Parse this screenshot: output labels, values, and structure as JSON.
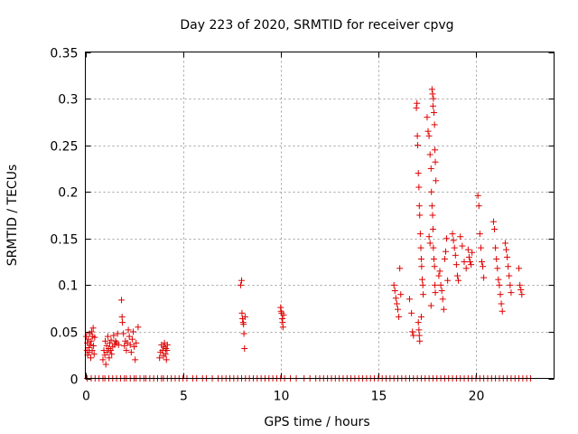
{
  "chart_data": {
    "type": "scatter",
    "title": "Day 223 of 2020, SRMTID for receiver cpvg",
    "xlabel": "GPS time / hours",
    "ylabel": "SRMTID / TECUs",
    "xlim": [
      0,
      24
    ],
    "ylim": [
      0,
      0.35
    ],
    "xticks": [
      0,
      5,
      10,
      15,
      20
    ],
    "xtick_labels": [
      "0",
      "5",
      "10",
      "15",
      "20"
    ],
    "yticks": [
      0,
      0.05,
      0.1,
      0.15,
      0.2,
      0.25,
      0.3,
      0.35
    ],
    "ytick_labels": [
      "0",
      "0.05",
      "0.1",
      "0.15",
      "0.2",
      "0.25",
      "0.3",
      "0.35"
    ],
    "grid": true,
    "marker": "+",
    "color": "#dd0000",
    "series": [
      {
        "name": "SRMTID",
        "points": [
          [
            0.05,
            0.045
          ],
          [
            0.08,
            0.03
          ],
          [
            0.1,
            0.038
          ],
          [
            0.12,
            0.025
          ],
          [
            0.15,
            0.042
          ],
          [
            0.18,
            0.033
          ],
          [
            0.2,
            0.028
          ],
          [
            0.22,
            0.048
          ],
          [
            0.25,
            0.036
          ],
          [
            0.28,
            0.022
          ],
          [
            0.3,
            0.04
          ],
          [
            0.32,
            0.05
          ],
          [
            0.35,
            0.03
          ],
          [
            0.38,
            0.045
          ],
          [
            0.4,
            0.054
          ],
          [
            0.42,
            0.035
          ],
          [
            0.45,
            0.026
          ],
          [
            0.48,
            0.044
          ],
          [
            0.9,
            0.02
          ],
          [
            0.95,
            0.03
          ],
          [
            1.0,
            0.025
          ],
          [
            1.02,
            0.04
          ],
          [
            1.05,
            0.015
          ],
          [
            1.1,
            0.035
          ],
          [
            1.12,
            0.028
          ],
          [
            1.15,
            0.045
          ],
          [
            1.2,
            0.032
          ],
          [
            1.22,
            0.022
          ],
          [
            1.25,
            0.038
          ],
          [
            1.3,
            0.03
          ],
          [
            1.32,
            0.041
          ],
          [
            1.35,
            0.026
          ],
          [
            1.4,
            0.034
          ],
          [
            1.45,
            0.046
          ],
          [
            1.5,
            0.036
          ],
          [
            1.55,
            0.04
          ],
          [
            1.6,
            0.038
          ],
          [
            1.65,
            0.048
          ],
          [
            1.7,
            0.036
          ],
          [
            1.85,
            0.084
          ],
          [
            1.88,
            0.066
          ],
          [
            1.9,
            0.06
          ],
          [
            1.95,
            0.048
          ],
          [
            2.0,
            0.035
          ],
          [
            2.05,
            0.04
          ],
          [
            2.1,
            0.03
          ],
          [
            2.15,
            0.038
          ],
          [
            2.2,
            0.052
          ],
          [
            2.25,
            0.045
          ],
          [
            2.3,
            0.036
          ],
          [
            2.35,
            0.028
          ],
          [
            2.4,
            0.042
          ],
          [
            2.45,
            0.05
          ],
          [
            2.5,
            0.034
          ],
          [
            2.55,
            0.02
          ],
          [
            2.6,
            0.038
          ],
          [
            2.7,
            0.055
          ],
          [
            3.8,
            0.022
          ],
          [
            3.85,
            0.028
          ],
          [
            3.9,
            0.036
          ],
          [
            3.95,
            0.03
          ],
          [
            4.0,
            0.024
          ],
          [
            4.02,
            0.034
          ],
          [
            4.05,
            0.038
          ],
          [
            4.1,
            0.026
          ],
          [
            4.12,
            0.032
          ],
          [
            4.15,
            0.02
          ],
          [
            4.18,
            0.03
          ],
          [
            4.2,
            0.036
          ],
          [
            7.95,
            0.1
          ],
          [
            8.0,
            0.105
          ],
          [
            8.02,
            0.07
          ],
          [
            8.05,
            0.064
          ],
          [
            8.08,
            0.06
          ],
          [
            8.1,
            0.058
          ],
          [
            8.12,
            0.048
          ],
          [
            8.15,
            0.032
          ],
          [
            8.18,
            0.066
          ],
          [
            10.0,
            0.076
          ],
          [
            10.02,
            0.072
          ],
          [
            10.05,
            0.07
          ],
          [
            10.08,
            0.064
          ],
          [
            10.1,
            0.06
          ],
          [
            10.12,
            0.055
          ],
          [
            10.15,
            0.068
          ],
          [
            15.8,
            0.1
          ],
          [
            15.85,
            0.094
          ],
          [
            15.9,
            0.086
          ],
          [
            15.95,
            0.08
          ],
          [
            16.0,
            0.074
          ],
          [
            16.05,
            0.066
          ],
          [
            16.1,
            0.118
          ],
          [
            16.15,
            0.09
          ],
          [
            16.6,
            0.085
          ],
          [
            16.7,
            0.07
          ],
          [
            16.75,
            0.05
          ],
          [
            16.8,
            0.046
          ],
          [
            16.95,
            0.29
          ],
          [
            16.98,
            0.295
          ],
          [
            17.0,
            0.26
          ],
          [
            17.02,
            0.25
          ],
          [
            17.05,
            0.22
          ],
          [
            17.08,
            0.205
          ],
          [
            17.1,
            0.185
          ],
          [
            17.12,
            0.175
          ],
          [
            17.15,
            0.155
          ],
          [
            17.18,
            0.14
          ],
          [
            17.2,
            0.128
          ],
          [
            17.22,
            0.12
          ],
          [
            17.25,
            0.106
          ],
          [
            17.28,
            0.1
          ],
          [
            17.3,
            0.09
          ],
          [
            17.05,
            0.06
          ],
          [
            17.08,
            0.052
          ],
          [
            17.1,
            0.046
          ],
          [
            17.12,
            0.04
          ],
          [
            17.2,
            0.066
          ],
          [
            17.5,
            0.28
          ],
          [
            17.55,
            0.265
          ],
          [
            17.6,
            0.26
          ],
          [
            17.65,
            0.24
          ],
          [
            17.7,
            0.225
          ],
          [
            17.72,
            0.2
          ],
          [
            17.75,
            0.185
          ],
          [
            17.78,
            0.175
          ],
          [
            17.8,
            0.16
          ],
          [
            17.82,
            0.14
          ],
          [
            17.85,
            0.128
          ],
          [
            17.88,
            0.12
          ],
          [
            17.9,
            0.1
          ],
          [
            17.92,
            0.092
          ],
          [
            17.75,
            0.31
          ],
          [
            17.78,
            0.305
          ],
          [
            17.8,
            0.292
          ],
          [
            17.82,
            0.3
          ],
          [
            17.85,
            0.285
          ],
          [
            17.88,
            0.272
          ],
          [
            17.9,
            0.245
          ],
          [
            17.92,
            0.232
          ],
          [
            17.95,
            0.212
          ],
          [
            17.6,
            0.152
          ],
          [
            17.65,
            0.145
          ],
          [
            17.7,
            0.078
          ],
          [
            18.1,
            0.11
          ],
          [
            18.15,
            0.115
          ],
          [
            18.2,
            0.1
          ],
          [
            18.25,
            0.094
          ],
          [
            18.3,
            0.085
          ],
          [
            18.35,
            0.074
          ],
          [
            18.4,
            0.128
          ],
          [
            18.45,
            0.136
          ],
          [
            18.5,
            0.15
          ],
          [
            18.55,
            0.105
          ],
          [
            18.8,
            0.155
          ],
          [
            18.85,
            0.148
          ],
          [
            18.9,
            0.14
          ],
          [
            18.95,
            0.132
          ],
          [
            19.0,
            0.122
          ],
          [
            19.05,
            0.11
          ],
          [
            19.1,
            0.105
          ],
          [
            19.2,
            0.152
          ],
          [
            19.3,
            0.142
          ],
          [
            19.4,
            0.125
          ],
          [
            19.5,
            0.118
          ],
          [
            19.6,
            0.138
          ],
          [
            19.65,
            0.13
          ],
          [
            19.7,
            0.125
          ],
          [
            19.75,
            0.122
          ],
          [
            19.8,
            0.135
          ],
          [
            20.1,
            0.196
          ],
          [
            20.15,
            0.185
          ],
          [
            20.2,
            0.155
          ],
          [
            20.25,
            0.14
          ],
          [
            20.3,
            0.125
          ],
          [
            20.35,
            0.12
          ],
          [
            20.4,
            0.108
          ],
          [
            20.9,
            0.168
          ],
          [
            20.95,
            0.16
          ],
          [
            21.0,
            0.14
          ],
          [
            21.05,
            0.128
          ],
          [
            21.1,
            0.118
          ],
          [
            21.15,
            0.106
          ],
          [
            21.2,
            0.1
          ],
          [
            21.25,
            0.09
          ],
          [
            21.3,
            0.08
          ],
          [
            21.35,
            0.072
          ],
          [
            21.5,
            0.145
          ],
          [
            21.55,
            0.138
          ],
          [
            21.6,
            0.13
          ],
          [
            21.65,
            0.12
          ],
          [
            21.7,
            0.11
          ],
          [
            21.75,
            0.1
          ],
          [
            21.8,
            0.092
          ],
          [
            22.2,
            0.118
          ],
          [
            22.25,
            0.1
          ],
          [
            22.3,
            0.095
          ],
          [
            22.35,
            0.09
          ]
        ]
      }
    ],
    "baseline_points_x": [
      0.1,
      0.3,
      0.5,
      0.7,
      0.9,
      1.0,
      1.2,
      1.4,
      1.6,
      1.8,
      2.0,
      2.1,
      2.3,
      2.5,
      2.6,
      2.8,
      3.0,
      3.1,
      3.3,
      3.5,
      3.7,
      3.9,
      4.0,
      4.2,
      4.4,
      4.6,
      4.8,
      5.0,
      5.2,
      5.5,
      5.7,
      6.0,
      6.2,
      6.5,
      6.8,
      7.0,
      7.2,
      7.4,
      7.6,
      7.8,
      8.0,
      8.2,
      8.4,
      8.6,
      8.8,
      9.0,
      9.2,
      9.4,
      9.6,
      9.8,
      10.0,
      10.2,
      10.5,
      10.8,
      11.2,
      11.5,
      11.8,
      12.0,
      12.2,
      12.4,
      12.6,
      12.8,
      13.0,
      13.2,
      13.4,
      13.6,
      13.8,
      14.0,
      14.2,
      14.4,
      14.6,
      14.8,
      15.0,
      15.2,
      15.4,
      15.6,
      15.8,
      16.0,
      16.2,
      16.4,
      16.6,
      16.8,
      17.0,
      17.2,
      17.4,
      17.6,
      17.8,
      18.0,
      18.2,
      18.4,
      18.6,
      18.8,
      19.0,
      19.2,
      19.4,
      19.6,
      19.8,
      20.0,
      20.2,
      20.4,
      20.6,
      20.8,
      21.0,
      21.2,
      21.4,
      21.6,
      21.8,
      22.0,
      22.2,
      22.4,
      22.6,
      22.8
    ],
    "baseline_value": 0
  }
}
